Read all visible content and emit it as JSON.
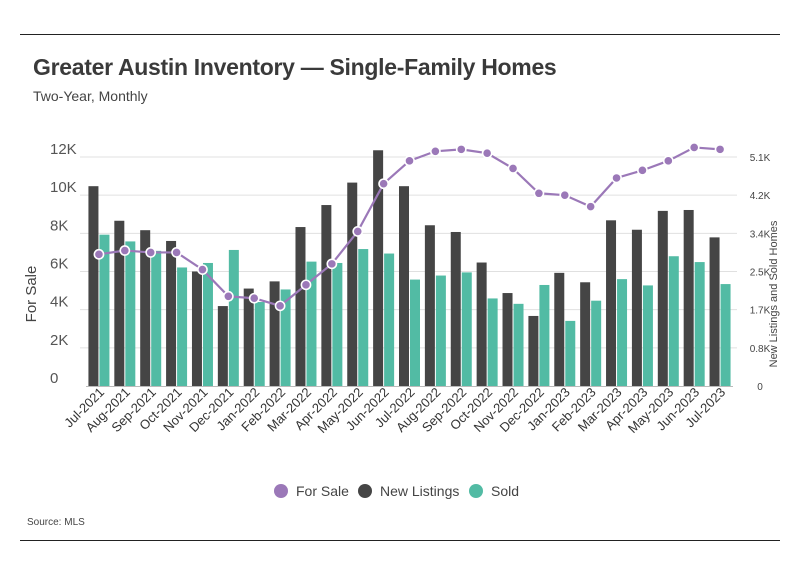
{
  "title": "Greater Austin Inventory — Single-Family Homes",
  "subtitle": "Two-Year, Monthly",
  "source": "Source: MLS",
  "colors": {
    "for_sale": "#9b78b8",
    "new_listings": "#454545",
    "sold": "#52bba4",
    "grid": "#e0e0e0"
  },
  "chart_data": {
    "type": "bar",
    "categories": [
      "Jul-2021",
      "Aug-2021",
      "Sep-2021",
      "Oct-2021",
      "Nov-2021",
      "Dec-2021",
      "Jan-2022",
      "Feb-2022",
      "Mar-2022",
      "Apr-2022",
      "May-2022",
      "Jun-2022",
      "Jul-2022",
      "Aug-2022",
      "Sep-2022",
      "Oct-2022",
      "Nov-2022",
      "Dec-2022",
      "Jan-2023",
      "Feb-2023",
      "Mar-2023",
      "Apr-2023",
      "May-2023",
      "Jun-2023",
      "Jul-2023"
    ],
    "series": [
      {
        "name": "For Sale",
        "type": "line",
        "axis": "left",
        "values": [
          6900,
          7100,
          7000,
          7000,
          6100,
          4700,
          4600,
          4200,
          5300,
          6400,
          8100,
          10600,
          11800,
          12300,
          12400,
          12200,
          11400,
          10100,
          10000,
          9400,
          10900,
          11300,
          11800,
          12500,
          12400
        ]
      },
      {
        "name": "New Listings",
        "type": "bar",
        "axis": "right",
        "values": [
          4450,
          3680,
          3470,
          3230,
          2550,
          1780,
          2170,
          2330,
          3540,
          4030,
          4530,
          5250,
          4450,
          3580,
          3430,
          2750,
          2070,
          1560,
          2520,
          2310,
          3690,
          3480,
          3900,
          3920,
          3310
        ]
      },
      {
        "name": "Sold",
        "type": "bar",
        "axis": "right",
        "values": [
          3370,
          3220,
          3010,
          2640,
          2740,
          3030,
          1870,
          2150,
          2770,
          2740,
          3050,
          2950,
          2370,
          2460,
          2530,
          1950,
          1830,
          2250,
          1450,
          1900,
          2380,
          2240,
          2890,
          2760,
          2270
        ]
      }
    ],
    "y_left": {
      "label": "For Sale",
      "range": [
        0,
        12000
      ],
      "ticks": [
        0,
        2000,
        4000,
        6000,
        8000,
        10000,
        12000
      ],
      "tick_labels": [
        "0",
        "2K",
        "4K",
        "6K",
        "8K",
        "10K",
        "12K"
      ]
    },
    "y_right": {
      "label": "New Listings and Sold Homes",
      "range": [
        0,
        5100
      ],
      "ticks": [
        0,
        850,
        1700,
        2550,
        3400,
        4250,
        5100
      ],
      "tick_labels": [
        "0",
        "0.8K",
        "1.7K",
        "2.5K",
        "3.4K",
        "4.2K",
        "5.1K"
      ]
    },
    "grid": true,
    "legend": {
      "placement": "bottom",
      "entries": [
        "For Sale",
        "New Listings",
        "Sold"
      ]
    }
  }
}
